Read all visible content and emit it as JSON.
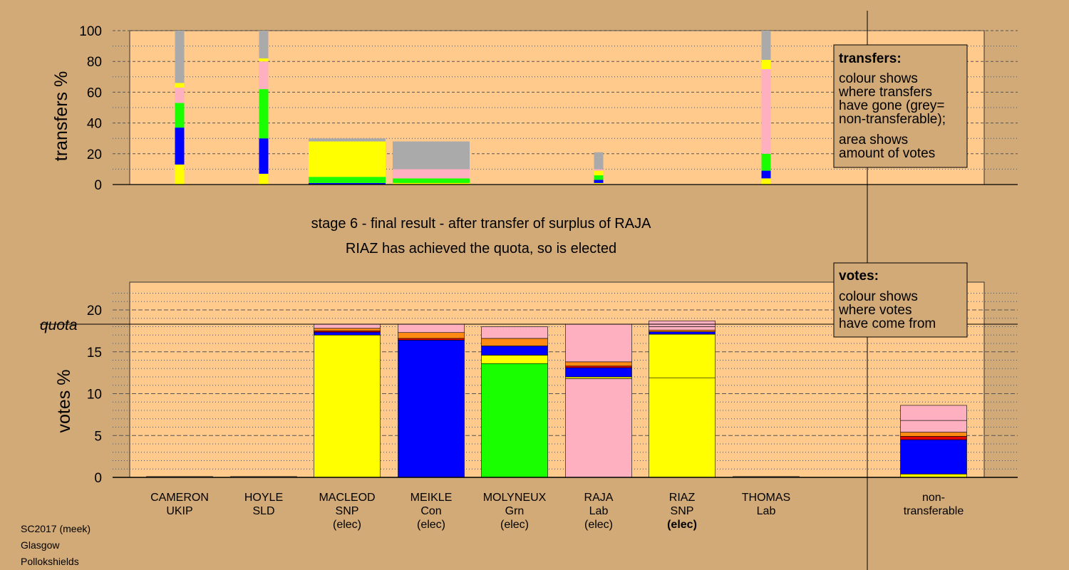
{
  "colors": {
    "background": "#d2aa78",
    "plot_bg": "#ffca8c",
    "SNP": "#ffff00",
    "Con": "#0000ff",
    "Grn": "#1aff00",
    "Lab": "#ffb0c0",
    "Orange": "#ff8a14",
    "Red": "#e00000",
    "NonTransferable": "#aaaaaa"
  },
  "source": [
    "SC2017 (meek)",
    "Glasgow",
    "Pollokshields"
  ],
  "titles": {
    "line1": "stage 6 - final result - after transfer of surplus of RAJA",
    "line2": "RIAZ has achieved the quota, so is elected"
  },
  "transfers_box": {
    "heading": "transfers:",
    "lines1": [
      "colour shows",
      "where transfers",
      "have gone (grey=",
      "non-transferable);"
    ],
    "lines2": [
      "area shows",
      "amount of votes"
    ]
  },
  "votes_box": {
    "heading": "votes:",
    "lines": [
      "colour shows",
      "where votes",
      "have come from"
    ]
  },
  "quota_label": "quota",
  "candidates": [
    {
      "name": "CAMERON",
      "party": "UKIP",
      "status": ""
    },
    {
      "name": "HOYLE",
      "party": "SLD",
      "status": ""
    },
    {
      "name": "MACLEOD",
      "party": "SNP",
      "status": "(elec)"
    },
    {
      "name": "MEIKLE",
      "party": "Con",
      "status": "(elec)"
    },
    {
      "name": "MOLYNEUX",
      "party": "Grn",
      "status": "(elec)"
    },
    {
      "name": "RAJA",
      "party": "Lab",
      "status": "(elec)"
    },
    {
      "name": "RIAZ",
      "party": "SNP",
      "status": "(elec)",
      "bold": true
    },
    {
      "name": "THOMAS",
      "party": "Lab",
      "status": ""
    }
  ],
  "nontransferable_label": [
    "non-",
    "transferable"
  ],
  "chart_data": [
    {
      "type": "bar",
      "title": "",
      "ylabel": "transfers %",
      "ylim": [
        0,
        100
      ],
      "yticks": [
        0,
        20,
        40,
        60,
        80,
        100
      ],
      "stacked": true,
      "bars": [
        {
          "candidate": "CAMERON",
          "width": "narrow",
          "segments": [
            {
              "color": "SNP",
              "value": 13
            },
            {
              "color": "Con",
              "value": 24
            },
            {
              "color": "Grn",
              "value": 16
            },
            {
              "color": "Lab",
              "value": 10
            },
            {
              "color": "SNP",
              "value": 3
            },
            {
              "color": "NonTransferable",
              "value": 34
            }
          ]
        },
        {
          "candidate": "HOYLE",
          "width": "narrow",
          "segments": [
            {
              "color": "SNP",
              "value": 7
            },
            {
              "color": "Con",
              "value": 23
            },
            {
              "color": "Grn",
              "value": 32
            },
            {
              "color": "Lab",
              "value": 18
            },
            {
              "color": "SNP",
              "value": 2
            },
            {
              "color": "NonTransferable",
              "value": 18
            }
          ]
        },
        {
          "candidate": "MACLEOD",
          "width": "wide",
          "segments": [
            {
              "color": "Con",
              "value": 1
            },
            {
              "color": "Grn",
              "value": 4
            },
            {
              "color": "SNP",
              "value": 23
            },
            {
              "color": "NonTransferable",
              "value": 2
            }
          ]
        },
        {
          "candidate": "MEIKLE",
          "width": "wide",
          "segments": [
            {
              "color": "SNP",
              "value": 1
            },
            {
              "color": "Grn",
              "value": 3
            },
            {
              "color": "Lab",
              "value": 6
            },
            {
              "color": "NonTransferable",
              "value": 18
            }
          ]
        },
        {
          "candidate": "RAJA",
          "width": "narrow",
          "segments": [
            {
              "color": "SNP",
              "value": 1
            },
            {
              "color": "Con",
              "value": 2
            },
            {
              "color": "Grn",
              "value": 3
            },
            {
              "color": "SNP",
              "value": 3
            },
            {
              "color": "Lab",
              "value": 1
            },
            {
              "color": "NonTransferable",
              "value": 11
            }
          ]
        },
        {
          "candidate": "THOMAS",
          "width": "narrow",
          "segments": [
            {
              "color": "SNP",
              "value": 4
            },
            {
              "color": "Con",
              "value": 5
            },
            {
              "color": "Grn",
              "value": 11
            },
            {
              "color": "Lab",
              "value": 55
            },
            {
              "color": "SNP",
              "value": 6
            },
            {
              "color": "NonTransferable",
              "value": 19
            }
          ]
        }
      ]
    },
    {
      "type": "bar",
      "title": "",
      "ylabel": "votes %",
      "ylim": [
        0,
        23
      ],
      "yticks": [
        0,
        5,
        10,
        15,
        20
      ],
      "quota": 18.3,
      "stacked": true,
      "bars": [
        {
          "candidate": "CAMERON",
          "total": 0.1,
          "segments": [
            {
              "color": "NonTransferable",
              "value": 0.1
            }
          ]
        },
        {
          "candidate": "HOYLE",
          "total": 0.1,
          "segments": [
            {
              "color": "NonTransferable",
              "value": 0.1
            }
          ]
        },
        {
          "candidate": "MACLEOD",
          "total": 18.3,
          "segments": [
            {
              "color": "SNP",
              "value": 17.0
            },
            {
              "color": "Con",
              "value": 0.35
            },
            {
              "color": "Red",
              "value": 0.15
            },
            {
              "color": "Orange",
              "value": 0.3
            },
            {
              "color": "Lab",
              "value": 0.5
            }
          ]
        },
        {
          "candidate": "MEIKLE",
          "total": 18.3,
          "segments": [
            {
              "color": "Con",
              "value": 16.4
            },
            {
              "color": "Red",
              "value": 0.2
            },
            {
              "color": "Orange",
              "value": 0.7
            },
            {
              "color": "Lab",
              "value": 1.0
            }
          ]
        },
        {
          "candidate": "MOLYNEUX",
          "total": 18.0,
          "segments": [
            {
              "color": "Grn",
              "value": 13.6
            },
            {
              "color": "SNP",
              "value": 1.0
            },
            {
              "color": "Con",
              "value": 1.1
            },
            {
              "color": "Orange",
              "value": 0.9
            },
            {
              "color": "Lab",
              "value": 1.4
            }
          ]
        },
        {
          "candidate": "RAJA",
          "total": 18.3,
          "segments": [
            {
              "color": "Lab",
              "value": 11.8
            },
            {
              "color": "SNP",
              "value": 0.2
            },
            {
              "color": "Con",
              "value": 1.1
            },
            {
              "color": "Red",
              "value": 0.2
            },
            {
              "color": "Orange",
              "value": 0.5
            },
            {
              "color": "Lab",
              "value": 4.5
            }
          ]
        },
        {
          "candidate": "RIAZ",
          "total": 18.7,
          "segments": [
            {
              "color": "SNP",
              "value": 11.9
            },
            {
              "color": "SNP",
              "value": 5.2
            },
            {
              "color": "Con",
              "value": 0.3
            },
            {
              "color": "Orange",
              "value": 0.2
            },
            {
              "color": "Lab",
              "value": 0.4
            },
            {
              "color": "Lab",
              "value": 0.7
            }
          ]
        },
        {
          "candidate": "THOMAS",
          "total": 0.1,
          "segments": [
            {
              "color": "NonTransferable",
              "value": 0.1
            }
          ]
        },
        {
          "candidate": "non-transferable",
          "total": 8.6,
          "segments": [
            {
              "color": "SNP",
              "value": 0.4
            },
            {
              "color": "Con",
              "value": 4.1
            },
            {
              "color": "Red",
              "value": 0.4
            },
            {
              "color": "Orange",
              "value": 0.5
            },
            {
              "color": "Lab",
              "value": 1.4
            },
            {
              "color": "Lab",
              "value": 1.8
            }
          ]
        }
      ]
    }
  ]
}
